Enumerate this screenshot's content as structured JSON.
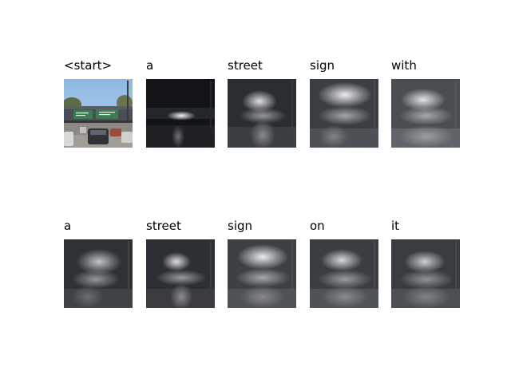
{
  "words": [
    "<start>",
    "a",
    "street",
    "sign",
    "with",
    "a",
    "street",
    "sign",
    "on",
    "it"
  ],
  "sky_color": "#9cc1e6",
  "sign_color": "#3f7a52",
  "attention_tint": "#e8e8e8"
}
